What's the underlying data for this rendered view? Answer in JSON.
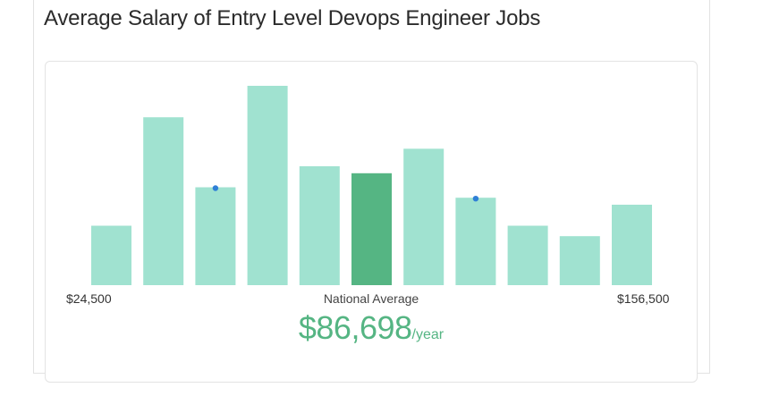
{
  "page": {
    "title": "Average Salary of Entry Level Devops Engineer Jobs"
  },
  "chart_data": {
    "type": "bar",
    "title": "Average Salary of Entry Level Devops Engineer Jobs",
    "x_min_label": "$24,500",
    "x_max_label": "$156,500",
    "bins": 11,
    "values": [
      17,
      48,
      28,
      57,
      34,
      32,
      39,
      25,
      17,
      14,
      23
    ],
    "highlight_index": 5,
    "marker_indices": [
      2,
      7
    ],
    "center_label": "National Average",
    "average_value": "$86,698",
    "average_unit": "/year",
    "colors": {
      "bar": "#a0e2d0",
      "highlight": "#55b583",
      "marker": "#2f7fd6",
      "value_text": "#55b583"
    }
  }
}
